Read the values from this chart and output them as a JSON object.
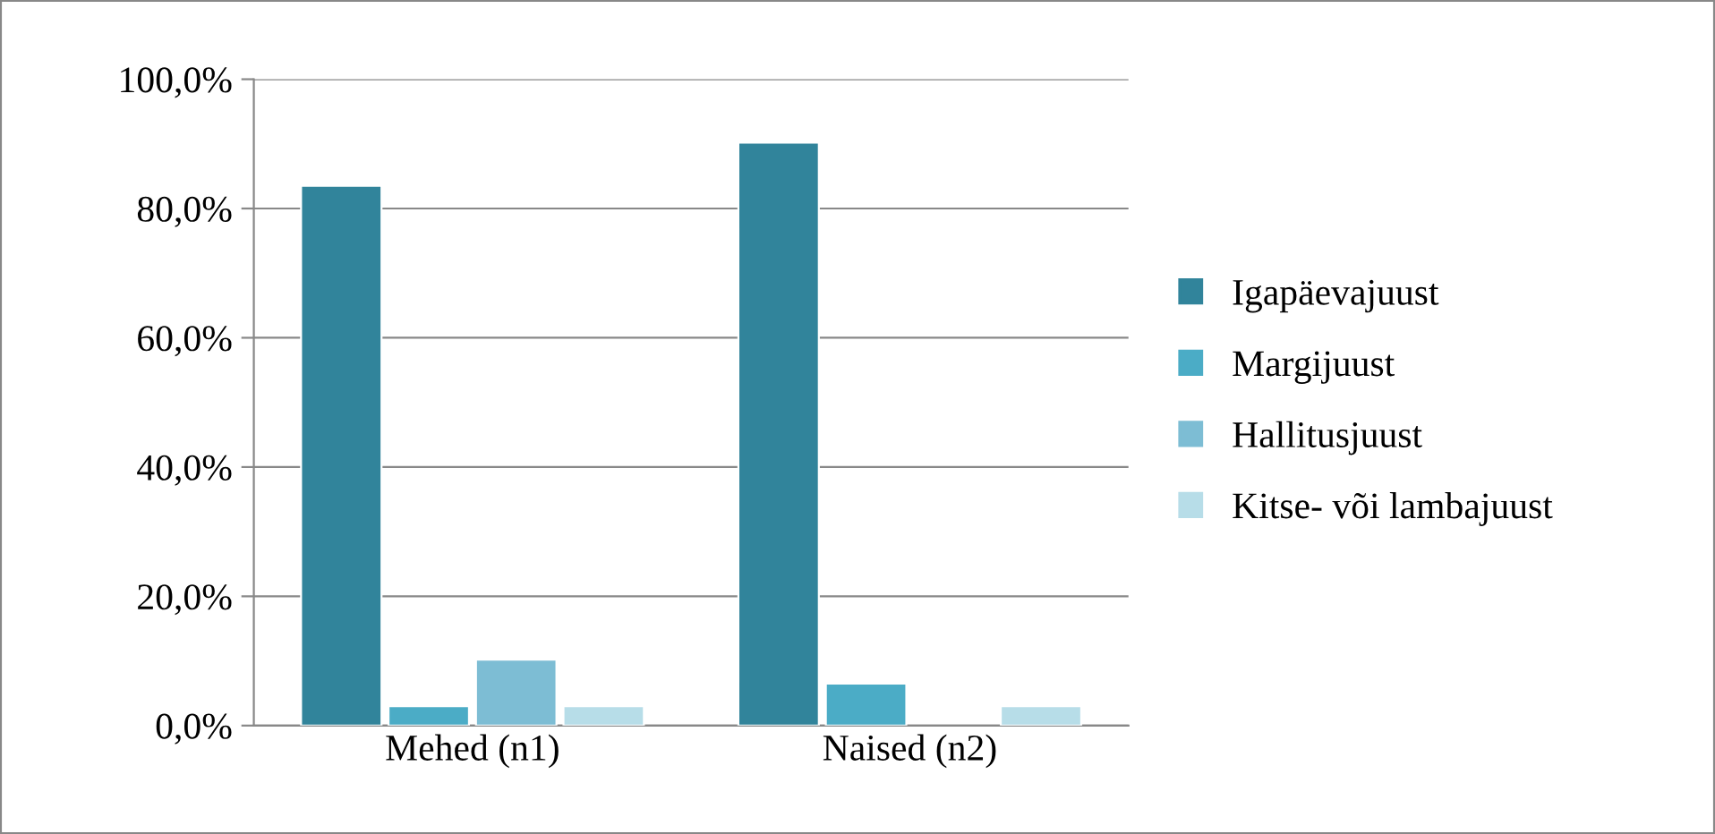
{
  "chart_data": {
    "type": "bar",
    "categories": [
      "Mehed (n1)",
      "Naised (n2)"
    ],
    "series": [
      {
        "name": "Igapäevajuust",
        "color": "#31849b",
        "values": [
          83.5,
          90.2
        ]
      },
      {
        "name": "Margijuust",
        "color": "#4bacc6",
        "values": [
          3.0,
          6.5
        ]
      },
      {
        "name": "Hallitusjuust",
        "color": "#7dbdd4",
        "values": [
          10.2,
          null
        ]
      },
      {
        "name": "Kitse- või lambajuust",
        "color": "#b7dde8",
        "values": [
          3.0,
          3.0
        ]
      }
    ],
    "ylim": [
      0,
      100
    ],
    "yticks": [
      {
        "value": 0,
        "label": "0,0%"
      },
      {
        "value": 20,
        "label": "20,0%"
      },
      {
        "value": 40,
        "label": "40,0%"
      },
      {
        "value": 60,
        "label": "60,0%"
      },
      {
        "value": 80,
        "label": "80,0%"
      },
      {
        "value": 100,
        "label": "100,0%"
      }
    ],
    "grid": "y",
    "legend": "right"
  }
}
